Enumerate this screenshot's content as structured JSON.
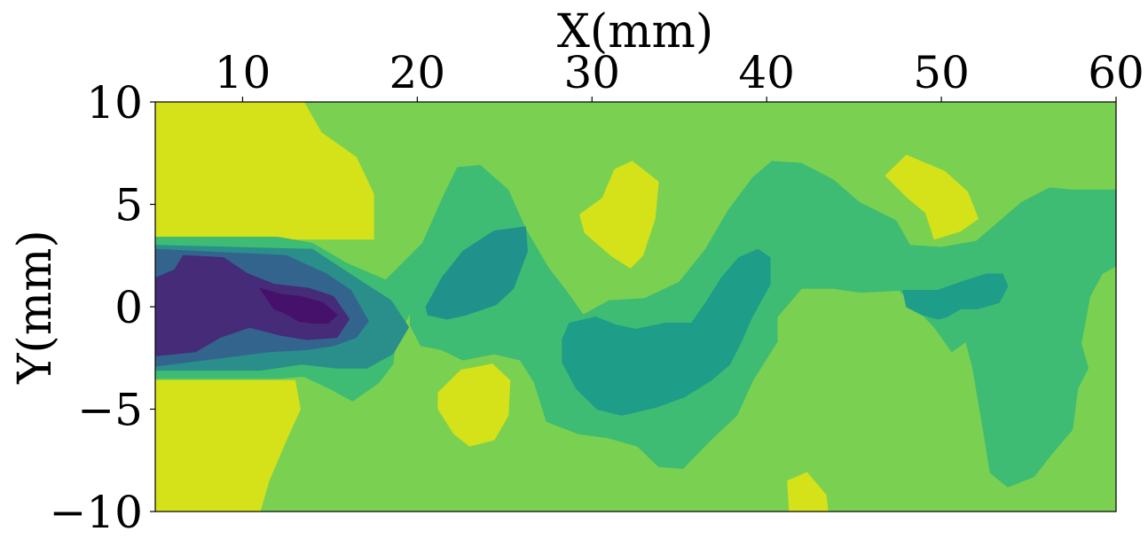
{
  "chart_data": {
    "type": "contour",
    "title": "",
    "xlabel": "X(mm)",
    "ylabel": "Y(mm)",
    "x_axis_position": "top",
    "xlim": [
      5,
      60
    ],
    "ylim": [
      -10,
      10
    ],
    "xticks": [
      10,
      20,
      30,
      40,
      50,
      60
    ],
    "xtick_labels": [
      "10",
      "20",
      "30",
      "40",
      "50",
      "60"
    ],
    "yticks": [
      10,
      5,
      0,
      -5,
      -10
    ],
    "ytick_labels": [
      "10",
      "5",
      "0",
      "−5",
      "−10"
    ],
    "grid": false,
    "legend": "none",
    "colormap": "viridis",
    "level_colors": [
      "#440154",
      "#482475",
      "#414487",
      "#355f8d",
      "#2a788e",
      "#21918c",
      "#22a884",
      "#44bf70",
      "#7ad151",
      "#bddf26",
      "#fde725"
    ],
    "background_level_color": "#7ad151",
    "regions": [
      {
        "name": "yellow-upper-left",
        "color": "#d5e21a",
        "points": [
          [
            5,
            10
          ],
          [
            13.5,
            10
          ],
          [
            14.5,
            8.5
          ],
          [
            16.5,
            7.3
          ],
          [
            17.5,
            5.5
          ],
          [
            17.5,
            3.3
          ],
          [
            5,
            3.3
          ]
        ]
      },
      {
        "name": "yellow-lower-left",
        "color": "#d5e21a",
        "points": [
          [
            5,
            -3.6
          ],
          [
            8,
            -3.6
          ],
          [
            13,
            -3.6
          ],
          [
            13.3,
            -5
          ],
          [
            12.5,
            -6.5
          ],
          [
            11.5,
            -8.5
          ],
          [
            11,
            -10
          ],
          [
            5,
            -10
          ]
        ]
      },
      {
        "name": "yellow-blob-24",
        "color": "#d5e21a",
        "points": [
          [
            21.2,
            -4.2
          ],
          [
            22.5,
            -3.1
          ],
          [
            24.3,
            -2.8
          ],
          [
            25.3,
            -3.6
          ],
          [
            25.2,
            -5.3
          ],
          [
            24.4,
            -6.5
          ],
          [
            23,
            -6.8
          ],
          [
            22.1,
            -6.2
          ],
          [
            21.2,
            -5
          ]
        ]
      },
      {
        "name": "yellow-blob-31",
        "color": "#d5e21a",
        "points": [
          [
            29.3,
            4.5
          ],
          [
            30.6,
            5.3
          ],
          [
            31.3,
            6.7
          ],
          [
            32.3,
            7.1
          ],
          [
            33.8,
            6.1
          ],
          [
            33.6,
            4.3
          ],
          [
            32.9,
            2.5
          ],
          [
            32.2,
            1.9
          ],
          [
            31.1,
            2.5
          ],
          [
            29.6,
            3.6
          ]
        ]
      },
      {
        "name": "yellow-blob-48",
        "color": "#d5e21a",
        "points": [
          [
            46.8,
            6.4
          ],
          [
            48,
            7.4
          ],
          [
            50.2,
            6.6
          ],
          [
            51.5,
            5.6
          ],
          [
            52.1,
            4.3
          ],
          [
            51.1,
            3.7
          ],
          [
            49.6,
            3.3
          ],
          [
            49.1,
            4.6
          ],
          [
            48.1,
            5.3
          ]
        ]
      },
      {
        "name": "yellow-blob-42",
        "color": "#d5e21a",
        "points": [
          [
            41.2,
            -8.5
          ],
          [
            42.3,
            -8.1
          ],
          [
            43.4,
            -9.2
          ],
          [
            43.5,
            -10
          ],
          [
            41.3,
            -10
          ]
        ]
      },
      {
        "name": "green-band-main",
        "color": "#3ebc73",
        "points": [
          [
            5,
            3.4
          ],
          [
            12,
            3.4
          ],
          [
            14,
            3.1
          ],
          [
            16,
            2.1
          ],
          [
            18.2,
            1.3
          ],
          [
            20.3,
            3.1
          ],
          [
            21.5,
            5.4
          ],
          [
            22.3,
            6.8
          ],
          [
            23.6,
            6.9
          ],
          [
            25.2,
            5.7
          ],
          [
            26.2,
            3.8
          ],
          [
            27.5,
            1.9
          ],
          [
            28.5,
            0.8
          ],
          [
            29.5,
            -0.4
          ],
          [
            31,
            0.3
          ],
          [
            33,
            0.4
          ],
          [
            35,
            1.2
          ],
          [
            36.5,
            2.8
          ],
          [
            37.8,
            4.7
          ],
          [
            39.2,
            6.3
          ],
          [
            40.3,
            7.1
          ],
          [
            42,
            7
          ],
          [
            43.8,
            6.2
          ],
          [
            45.3,
            5.1
          ],
          [
            47.4,
            4.2
          ],
          [
            48.2,
            3
          ],
          [
            50,
            2.9
          ],
          [
            52,
            3.2
          ],
          [
            54.6,
            5.1
          ],
          [
            56.2,
            5.8
          ],
          [
            57.5,
            5.7
          ],
          [
            60,
            5.7
          ],
          [
            60,
            2
          ],
          [
            59.2,
            1.6
          ],
          [
            58.5,
            0.5
          ],
          [
            58,
            -1.8
          ],
          [
            58.4,
            -3
          ],
          [
            57.8,
            -4
          ],
          [
            57.5,
            -6
          ],
          [
            56.3,
            -7.2
          ],
          [
            55.3,
            -8.3
          ],
          [
            53.8,
            -8.8
          ],
          [
            52.8,
            -8.1
          ],
          [
            52.4,
            -6
          ],
          [
            51.8,
            -3
          ],
          [
            51.4,
            -1.7
          ],
          [
            50.6,
            -2.2
          ],
          [
            49.6,
            -1
          ],
          [
            47.6,
            0.8
          ],
          [
            45.4,
            0.7
          ],
          [
            43.8,
            0.9
          ],
          [
            42,
            0.9
          ],
          [
            40.6,
            -0.5
          ],
          [
            40.6,
            -1.7
          ],
          [
            39.2,
            -3.6
          ],
          [
            38.3,
            -5.3
          ],
          [
            36.8,
            -6.5
          ],
          [
            35.2,
            -7.9
          ],
          [
            33.8,
            -7.8
          ],
          [
            32.6,
            -6.8
          ],
          [
            30.9,
            -6.4
          ],
          [
            29.2,
            -6.2
          ],
          [
            27.4,
            -5.6
          ],
          [
            26.7,
            -3.7
          ],
          [
            25.9,
            -2.6
          ],
          [
            24.4,
            -2.3
          ],
          [
            22.6,
            -2.6
          ],
          [
            21.4,
            -2.1
          ],
          [
            20.2,
            -1.9
          ],
          [
            19.6,
            -0.9
          ],
          [
            19.6,
            -0.3
          ],
          [
            18.8,
            -1.5
          ],
          [
            18.6,
            -2.8
          ],
          [
            17.8,
            -3.7
          ],
          [
            16.3,
            -4.6
          ],
          [
            15,
            -4
          ],
          [
            13.5,
            -3.4
          ],
          [
            12,
            -3.5
          ],
          [
            5,
            -3.5
          ]
        ]
      },
      {
        "name": "teal-blob-24",
        "color": "#21918c",
        "points": [
          [
            20.5,
            0
          ],
          [
            21.4,
            1.4
          ],
          [
            22.6,
            2.7
          ],
          [
            24.4,
            3.7
          ],
          [
            26.2,
            3.9
          ],
          [
            26.3,
            2.7
          ],
          [
            25.5,
            0.9
          ],
          [
            24.5,
            0.1
          ],
          [
            22.8,
            -0.4
          ],
          [
            21.7,
            -0.6
          ],
          [
            20.6,
            -0.4
          ]
        ]
      },
      {
        "name": "teal-blob-center",
        "color": "#1e9d89",
        "points": [
          [
            28.7,
            -0.8
          ],
          [
            30.2,
            -0.5
          ],
          [
            31.4,
            -0.9
          ],
          [
            32.5,
            -1.1
          ],
          [
            34.2,
            -0.8
          ],
          [
            35.7,
            -0.8
          ],
          [
            36.6,
            0.3
          ],
          [
            37.4,
            1.4
          ],
          [
            38.4,
            2.4
          ],
          [
            39.5,
            2.8
          ],
          [
            40.2,
            2.4
          ],
          [
            40.2,
            1.1
          ],
          [
            39.1,
            -0.6
          ],
          [
            38.6,
            -1.6
          ],
          [
            37.9,
            -2.8
          ],
          [
            36.8,
            -3.6
          ],
          [
            35.3,
            -4.4
          ],
          [
            33.7,
            -4.9
          ],
          [
            31.7,
            -5.3
          ],
          [
            30.3,
            -5
          ],
          [
            29.1,
            -4
          ],
          [
            28.3,
            -2.7
          ],
          [
            28.3,
            -1.6
          ]
        ]
      },
      {
        "name": "teal-blob-right",
        "color": "#1e9d89",
        "points": [
          [
            47.8,
            0.8
          ],
          [
            49.8,
            0.8
          ],
          [
            51.1,
            1.2
          ],
          [
            52.6,
            1.6
          ],
          [
            53.5,
            1.6
          ],
          [
            53.8,
            1
          ],
          [
            53.3,
            0.2
          ],
          [
            52.1,
            -0.1
          ],
          [
            51.1,
            -0.1
          ],
          [
            50.3,
            -0.5
          ],
          [
            49.8,
            -0.6
          ],
          [
            48.9,
            -0.4
          ],
          [
            48,
            0
          ]
        ]
      },
      {
        "name": "teal-core-left",
        "color": "#2a8e8a",
        "points": [
          [
            5,
            3
          ],
          [
            14,
            2.8
          ],
          [
            16.5,
            1.4
          ],
          [
            18.5,
            0.3
          ],
          [
            19.5,
            -1
          ],
          [
            18.6,
            -2.3
          ],
          [
            17.1,
            -3
          ],
          [
            15.4,
            -3
          ],
          [
            13.4,
            -2.8
          ],
          [
            11,
            -3.1
          ],
          [
            5,
            -3.1
          ]
        ]
      },
      {
        "name": "blue-core-left",
        "color": "#33648d",
        "points": [
          [
            5,
            2.8
          ],
          [
            12.5,
            2.5
          ],
          [
            14.8,
            1.6
          ],
          [
            16.2,
            0.8
          ],
          [
            17.2,
            -0.7
          ],
          [
            16.5,
            -1.5
          ],
          [
            15.2,
            -1.9
          ],
          [
            13.6,
            -2.1
          ],
          [
            11.5,
            -2.2
          ],
          [
            5,
            -2.9
          ]
        ]
      },
      {
        "name": "purple-core-outer",
        "color": "#452b78",
        "points": [
          [
            6.6,
            2.5
          ],
          [
            8.9,
            2.4
          ],
          [
            10.3,
            1.6
          ],
          [
            11.8,
            1.1
          ],
          [
            13.8,
            0.9
          ],
          [
            15.2,
            0.5
          ],
          [
            16.1,
            -0.6
          ],
          [
            15.4,
            -1.5
          ],
          [
            13.7,
            -1.6
          ],
          [
            12.2,
            -1.4
          ],
          [
            10.4,
            -1
          ],
          [
            8.7,
            -1.5
          ],
          [
            7.3,
            -2.2
          ],
          [
            5,
            -2.4
          ],
          [
            5,
            1.4
          ],
          [
            6.1,
            1.8
          ]
        ]
      },
      {
        "name": "purple-core-inner",
        "color": "#46116a",
        "points": [
          [
            11,
            0.9
          ],
          [
            12.2,
            0.6
          ],
          [
            13.3,
            0.5
          ],
          [
            14.6,
            0.2
          ],
          [
            15.4,
            -0.4
          ],
          [
            14.9,
            -0.8
          ],
          [
            14,
            -0.8
          ],
          [
            13.2,
            -0.7
          ],
          [
            12.4,
            -0.3
          ],
          [
            11.8,
            -0.1
          ]
        ]
      }
    ]
  }
}
